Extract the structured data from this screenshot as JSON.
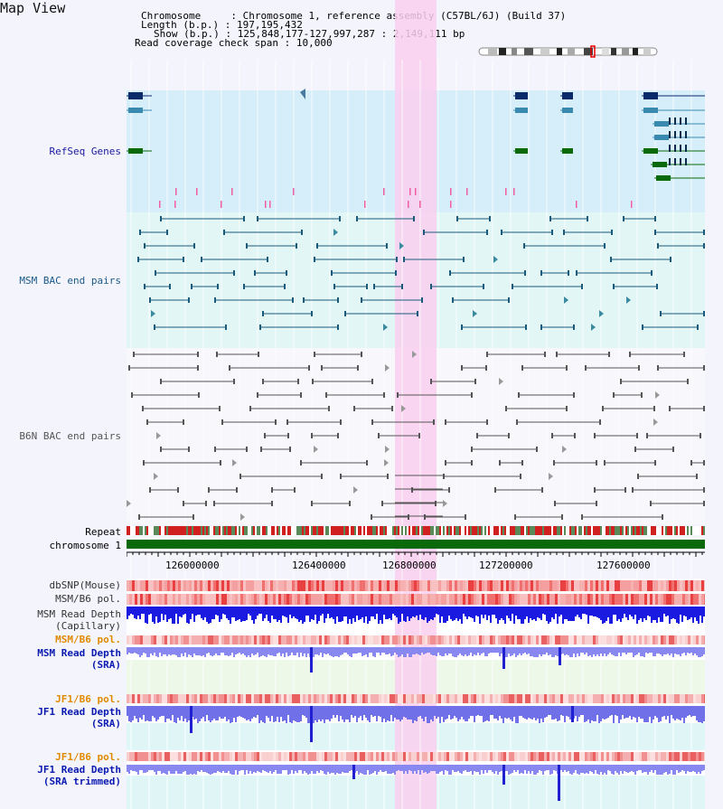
{
  "page_title": "Map View",
  "info": {
    "chromosome_label": "Chromosome",
    "chromosome_value": "Chromosome 1, reference assembly (C57BL/6J) (Build 37)",
    "length_label": "Length (b.p.)",
    "length_value": "197,195,432",
    "show_label": "Show (b.p.)",
    "show_value": "125,848,177-127,997,287 : 2,149,111 bp",
    "coverage_label": "Read coverage check span",
    "coverage_value": "10,000"
  },
  "tracks": {
    "refseq": "RefSeq Genes",
    "msm_bac": "MSM BAC end pairs",
    "b6n_bac": "B6N BAC end pairs",
    "repeat": "Repeat",
    "chromosome": "chromosome 1",
    "dbsnp": "dbSNP(Mouse)",
    "msm_b6_pol_1": "MSM/B6 pol.",
    "msm_depth_cap_1": "MSM Read Depth",
    "msm_depth_cap_2": "(Capillary)",
    "msm_b6_pol_2": "MSM/B6 pol.",
    "msm_depth_sra_1": "MSM Read Depth",
    "msm_depth_sra_2": "(SRA)",
    "jf1_b6_pol_1": "JF1/B6 pol.",
    "jf1_depth_sra_1": "JF1 Read Depth",
    "jf1_depth_sra_2": "(SRA)",
    "jf1_b6_pol_2": "JF1/B6 pol.",
    "jf1_depth_trim_1": "JF1 Read Depth",
    "jf1_depth_trim_2": "(SRA trimmed)"
  },
  "ruler": {
    "ticks": [
      "126000000",
      "126400000",
      "126800000",
      "127200000",
      "127600000"
    ]
  },
  "colors": {
    "refseq_label": "#1a1aa0",
    "msm_label": "#1a5a8a",
    "b6n_label": "#555555",
    "orange_label": "#e08a00",
    "blue_label": "#0a1ab0",
    "highlight": "#f9cfee",
    "chromosome_bar": "#0a6a0a"
  }
}
